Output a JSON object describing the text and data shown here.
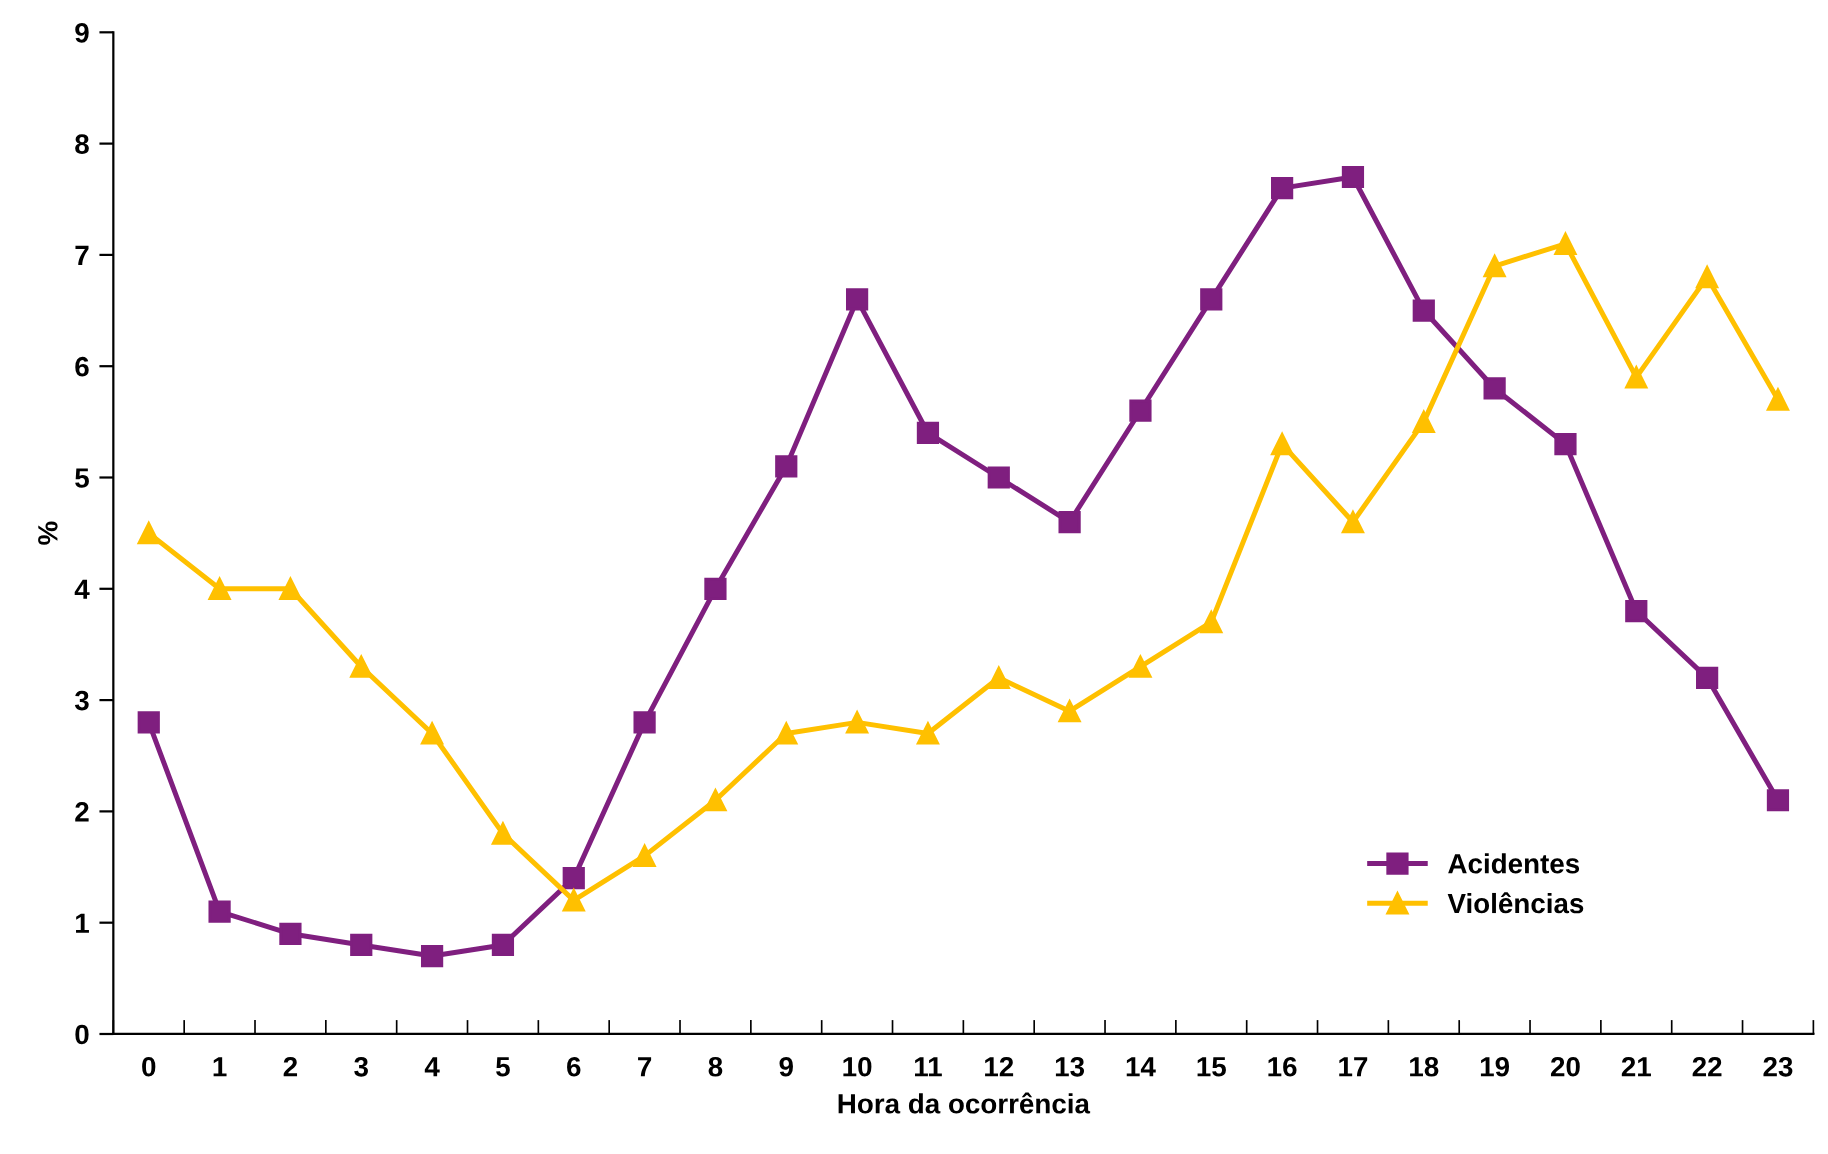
{
  "chart_data": {
    "type": "line",
    "xlabel": "Hora da ocorrência",
    "ylabel": "%",
    "categories": [
      "0",
      "1",
      "2",
      "3",
      "4",
      "5",
      "6",
      "7",
      "8",
      "9",
      "10",
      "11",
      "12",
      "13",
      "14",
      "15",
      "16",
      "17",
      "18",
      "19",
      "20",
      "21",
      "22",
      "23"
    ],
    "series": [
      {
        "name": "Acidentes",
        "color": "#7f1f7f",
        "marker": "square",
        "values": [
          2.8,
          1.1,
          0.9,
          0.8,
          0.7,
          0.8,
          1.4,
          2.8,
          4.0,
          5.1,
          6.6,
          5.4,
          5.0,
          4.6,
          5.6,
          6.6,
          7.6,
          7.7,
          6.5,
          5.8,
          5.3,
          3.8,
          3.2,
          2.1
        ]
      },
      {
        "name": "Violências",
        "color": "#ffc000",
        "marker": "triangle",
        "values": [
          4.5,
          4.0,
          4.0,
          3.3,
          2.7,
          1.8,
          1.2,
          1.6,
          2.1,
          2.7,
          2.8,
          2.7,
          3.2,
          2.9,
          3.3,
          3.7,
          5.3,
          4.6,
          5.5,
          6.9,
          7.1,
          5.9,
          6.8,
          5.7
        ]
      }
    ],
    "ylim": [
      0,
      9
    ],
    "yticks": [
      0,
      1,
      2,
      3,
      4,
      5,
      6,
      7,
      8,
      9
    ],
    "grid": false,
    "legend": "lower right",
    "line_style": "solid"
  }
}
